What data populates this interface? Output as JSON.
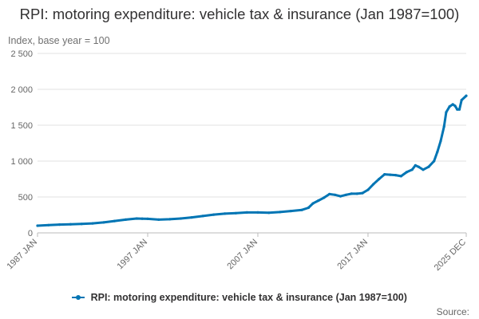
{
  "chart_data": {
    "type": "line",
    "title": "RPI: motoring expenditure: vehicle tax & insurance (Jan 1987=100)",
    "ylabel": "Index, base year = 100",
    "xlabel": "",
    "ylim": [
      0,
      2500
    ],
    "xlim": [
      1987.0,
      2025.917
    ],
    "y_ticks": [
      0,
      500,
      1000,
      1500,
      2000,
      2500
    ],
    "y_tick_labels": [
      "0",
      "500",
      "1 000",
      "1 500",
      "2 000",
      "2 500"
    ],
    "x_ticks": [
      1987.0,
      1997.0,
      2007.0,
      2017.0,
      2025.917
    ],
    "x_tick_labels": [
      "1987 JAN",
      "1997 JAN",
      "2007 JAN",
      "2017 JAN",
      "2025 DEC"
    ],
    "grid": true,
    "legend": "bottom",
    "series": [
      {
        "name": "RPI: motoring expenditure: vehicle tax & insurance (Jan 1987=100)",
        "color": "#0075b4",
        "points": [
          [
            1987.0,
            100
          ],
          [
            1988.0,
            108
          ],
          [
            1989.0,
            115
          ],
          [
            1990.0,
            120
          ],
          [
            1991.0,
            125
          ],
          [
            1992.0,
            132
          ],
          [
            1993.0,
            145
          ],
          [
            1994.0,
            165
          ],
          [
            1995.0,
            185
          ],
          [
            1996.0,
            200
          ],
          [
            1996.5,
            198
          ],
          [
            1997.0,
            195
          ],
          [
            1998.0,
            185
          ],
          [
            1999.0,
            190
          ],
          [
            2000.0,
            200
          ],
          [
            2001.0,
            215
          ],
          [
            2002.0,
            235
          ],
          [
            2003.0,
            255
          ],
          [
            2004.0,
            268
          ],
          [
            2005.0,
            275
          ],
          [
            2006.0,
            285
          ],
          [
            2007.0,
            285
          ],
          [
            2008.0,
            280
          ],
          [
            2009.0,
            290
          ],
          [
            2010.0,
            305
          ],
          [
            2011.0,
            320
          ],
          [
            2011.6,
            350
          ],
          [
            2012.0,
            410
          ],
          [
            2012.5,
            450
          ],
          [
            2013.0,
            490
          ],
          [
            2013.5,
            540
          ],
          [
            2014.0,
            530
          ],
          [
            2014.5,
            510
          ],
          [
            2015.0,
            530
          ],
          [
            2015.5,
            545
          ],
          [
            2016.0,
            545
          ],
          [
            2016.5,
            555
          ],
          [
            2017.0,
            600
          ],
          [
            2017.5,
            680
          ],
          [
            2018.0,
            750
          ],
          [
            2018.5,
            815
          ],
          [
            2019.0,
            810
          ],
          [
            2019.5,
            805
          ],
          [
            2020.0,
            790
          ],
          [
            2020.5,
            845
          ],
          [
            2021.0,
            880
          ],
          [
            2021.3,
            940
          ],
          [
            2021.6,
            920
          ],
          [
            2022.0,
            880
          ],
          [
            2022.5,
            920
          ],
          [
            2023.0,
            1000
          ],
          [
            2023.3,
            1130
          ],
          [
            2023.6,
            1280
          ],
          [
            2023.9,
            1480
          ],
          [
            2024.1,
            1680
          ],
          [
            2024.4,
            1760
          ],
          [
            2024.7,
            1790
          ],
          [
            2024.9,
            1770
          ],
          [
            2025.1,
            1720
          ],
          [
            2025.3,
            1720
          ],
          [
            2025.5,
            1850
          ],
          [
            2025.917,
            1910
          ]
        ]
      }
    ]
  },
  "legend": {
    "label": "RPI: motoring expenditure: vehicle tax & insurance (Jan 1987=100)"
  },
  "footer": {
    "source_label": "Source:"
  }
}
